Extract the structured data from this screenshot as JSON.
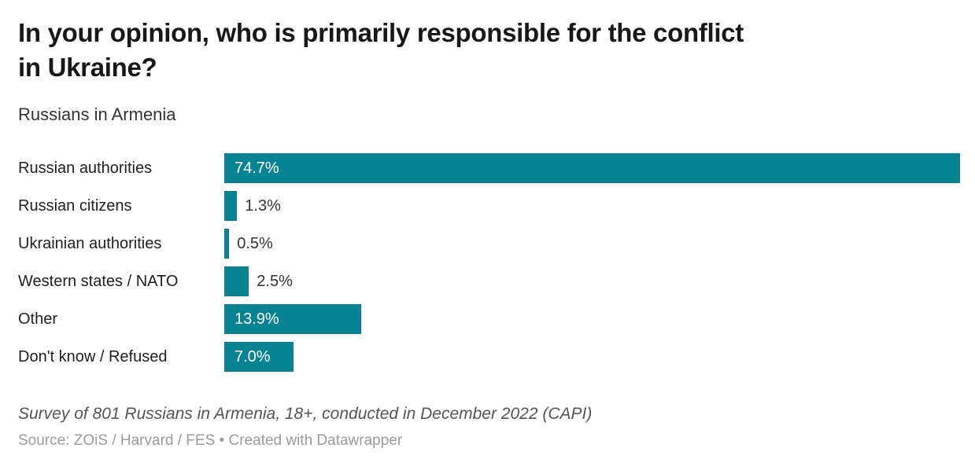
{
  "header": {
    "title": "In your opinion, who is primarily responsible for the conflict\nin Ukraine?",
    "subtitle": "Russians in Armenia"
  },
  "chart_data": {
    "type": "bar",
    "orientation": "horizontal",
    "title": "In your opinion, who is primarily responsible for the conflict in Ukraine?",
    "subtitle": "Russians in Armenia",
    "categories": [
      "Russian authorities",
      "Russian citizens",
      "Ukrainian authorities",
      "Western states / NATO",
      "Other",
      "Don't know / Refused"
    ],
    "values": [
      74.7,
      1.3,
      0.5,
      2.5,
      13.9,
      7.0
    ],
    "value_labels": [
      "74.7%",
      "1.3%",
      "0.5%",
      "2.5%",
      "13.9%",
      "7.0%"
    ],
    "unit": "%",
    "xlim": [
      0,
      74.7
    ],
    "grid": false,
    "axis_ticks": "none",
    "value_label_position": "inside-start-or-outside-end"
  },
  "footer": {
    "notes": "Survey of 801 Russians in Armenia, 18+, conducted in December 2022 (CAPI)",
    "source_prefix": "Source:",
    "source": "ZOiS / Harvard / FES",
    "separator": "•",
    "attribution": "Created with Datawrapper"
  },
  "colors": {
    "bar": "#088394",
    "value_inside": "#ffffff",
    "value_outside": "#333333",
    "title": "#181818",
    "subtitle": "#333333",
    "notes": "#555555",
    "source": "#9b9b9b"
  }
}
